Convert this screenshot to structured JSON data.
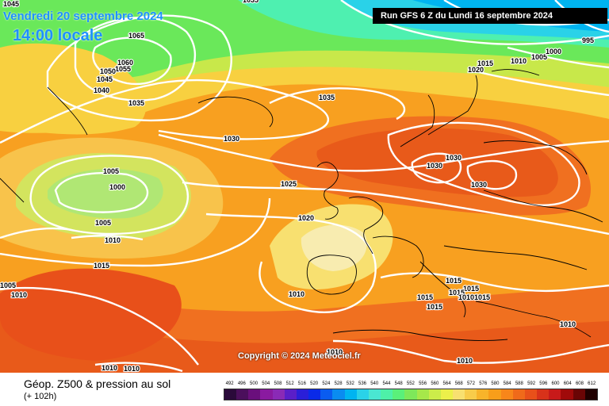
{
  "header": {
    "date": "Vendredi 20 septembre 2024",
    "time": "14:00 locale",
    "run": "Run GFS 6 Z du Lundi 16 septembre 2024"
  },
  "copyright": "Copyright © 2024 Meteociel.fr",
  "legend": {
    "title": "Géop. Z500 & pression au sol",
    "forecast_hour": "(+ 102h)",
    "scale_values": [
      "492",
      "496",
      "500",
      "504",
      "508",
      "512",
      "516",
      "520",
      "524",
      "528",
      "532",
      "536",
      "540",
      "544",
      "548",
      "552",
      "556",
      "560",
      "564",
      "568",
      "572",
      "576",
      "580",
      "584",
      "588",
      "592",
      "596",
      "600",
      "604",
      "608",
      "612"
    ],
    "scale_colors": [
      "#2a0a3a",
      "#4b0f5c",
      "#6a0f7c",
      "#8a1aa0",
      "#8a2ab6",
      "#5a1fc8",
      "#2a1fd8",
      "#0a2ae8",
      "#0a5cf0",
      "#0a8cf0",
      "#00b4f0",
      "#2ad2e8",
      "#4ae6d2",
      "#4ef0a8",
      "#5af07a",
      "#7ee85a",
      "#a6e84a",
      "#ccec4a",
      "#ecf04a",
      "#f8e070",
      "#f8cc4a",
      "#f8b42a",
      "#f89e1a",
      "#f8861a",
      "#f06a1a",
      "#e8501a",
      "#d8321a",
      "#c81a1a",
      "#a00a0a",
      "#6a0505",
      "#200000"
    ]
  },
  "isobar_labels": [
    {
      "text": "1045"
    },
    {
      "text": "1065"
    },
    {
      "text": "1060"
    },
    {
      "text": "1055"
    },
    {
      "text": "1050"
    },
    {
      "text": "1045"
    },
    {
      "text": "1040"
    },
    {
      "text": "1035"
    },
    {
      "text": "1035"
    },
    {
      "text": "1030"
    },
    {
      "text": "1005"
    },
    {
      "text": "1000"
    },
    {
      "text": "1005"
    },
    {
      "text": "1010"
    },
    {
      "text": "1015"
    },
    {
      "text": "1025"
    },
    {
      "text": "1020"
    },
    {
      "text": "1005"
    },
    {
      "text": "1010"
    },
    {
      "text": "1010"
    },
    {
      "text": "1010"
    },
    {
      "text": "1010"
    },
    {
      "text": "1030"
    },
    {
      "text": "1030"
    },
    {
      "text": "1030"
    },
    {
      "text": "1015"
    },
    {
      "text": "1015"
    },
    {
      "text": "1015"
    },
    {
      "text": "1015"
    },
    {
      "text": "10101015"
    },
    {
      "text": "1015"
    },
    {
      "text": "1010"
    },
    {
      "text": "1010"
    },
    {
      "text": "1010"
    },
    {
      "text": "1015"
    },
    {
      "text": "1020"
    },
    {
      "text": "1010"
    },
    {
      "text": "1005"
    },
    {
      "text": "1000"
    },
    {
      "text": "995"
    },
    {
      "text": "1035"
    }
  ]
}
